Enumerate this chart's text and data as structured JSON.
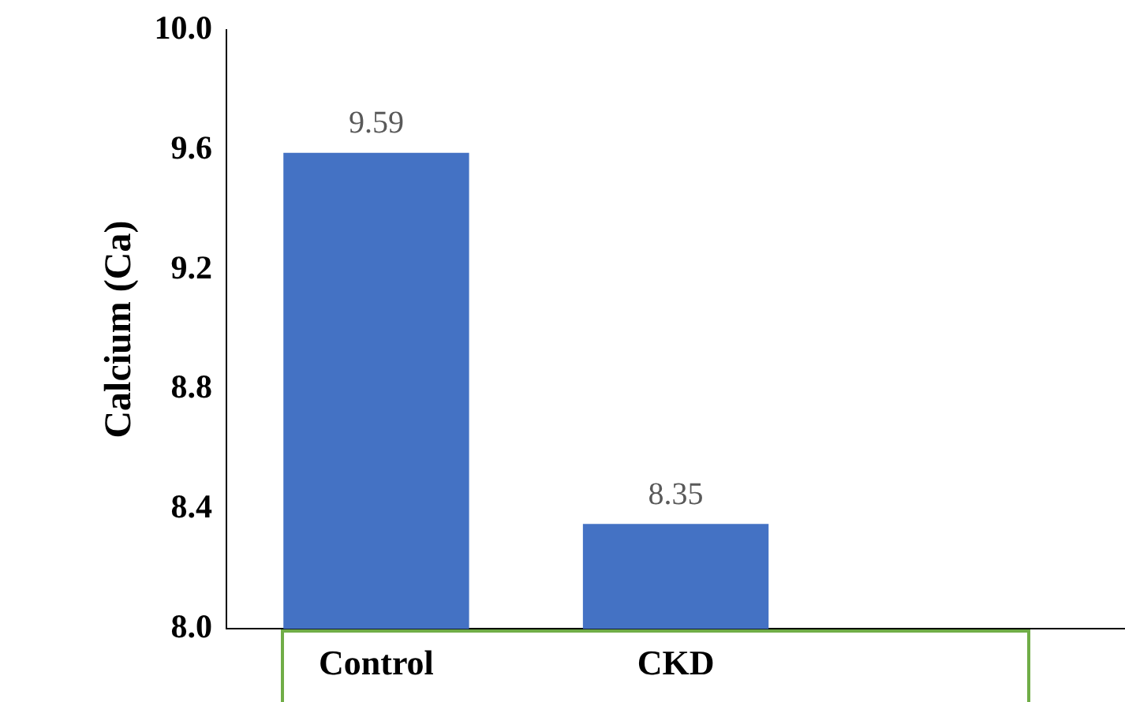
{
  "chart_data": {
    "type": "bar",
    "ylabel": "Calcium (Ca)",
    "categories": [
      "Control",
      "CKD",
      null
    ],
    "values": [
      9.59,
      8.35,
      null
    ],
    "color": "#4472c4",
    "ylim": [
      8,
      10
    ],
    "yticks": [
      {
        "value": 8,
        "label": "8.0"
      },
      {
        "value": 8.4,
        "label": "8.4"
      },
      {
        "value": 8.8,
        "label": "8.8"
      },
      {
        "value": 9.2,
        "label": "9.2"
      },
      {
        "value": 9.6,
        "label": "9.6"
      },
      {
        "value": 10,
        "label": "10.0"
      }
    ],
    "grid": false,
    "legend": false,
    "data_labels": true
  }
}
